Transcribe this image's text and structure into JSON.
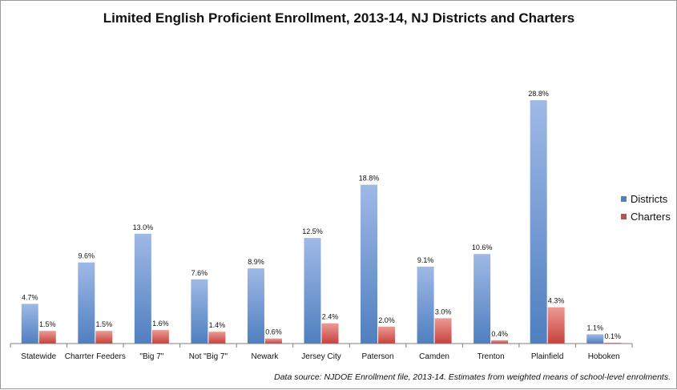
{
  "chart_data": {
    "type": "bar",
    "title": "Limited English Proficient Enrollment, 2013-14, NJ Districts and Charters",
    "categories": [
      "Statewide",
      "Charrter Feeders",
      "\"Big 7\"",
      "Not \"Big 7\"",
      "Newark",
      "Jersey City",
      "Paterson",
      "Camden",
      "Trenton",
      "Plainfield",
      "Hoboken"
    ],
    "series": [
      {
        "name": "Districts",
        "color": "#4f81bd",
        "values": [
          4.7,
          9.6,
          13.0,
          7.6,
          8.9,
          12.5,
          18.8,
          9.1,
          10.6,
          28.8,
          1.1
        ],
        "labels": [
          "4.7%",
          "9.6%",
          "13.0%",
          "7.6%",
          "8.9%",
          "12.5%",
          "18.8%",
          "9.1%",
          "10.6%",
          "28.8%",
          "1.1%"
        ]
      },
      {
        "name": "Charters",
        "color": "#c0504d",
        "values": [
          1.5,
          1.5,
          1.6,
          1.4,
          0.6,
          2.4,
          2.0,
          3.0,
          0.4,
          4.3,
          0.1
        ],
        "labels": [
          "1.5%",
          "1.5%",
          "1.6%",
          "1.4%",
          "0.6%",
          "2.4%",
          "2.0%",
          "3.0%",
          "0.4%",
          "4.3%",
          "0.1%"
        ]
      }
    ],
    "xlabel": "",
    "ylabel": "",
    "ylim": [
      0,
      30
    ],
    "grid": false,
    "legend": "right",
    "source_note": "Data source: NJDOE Enrollment file, 2013-14. Estimates from weighted means of school-level enrolments."
  }
}
